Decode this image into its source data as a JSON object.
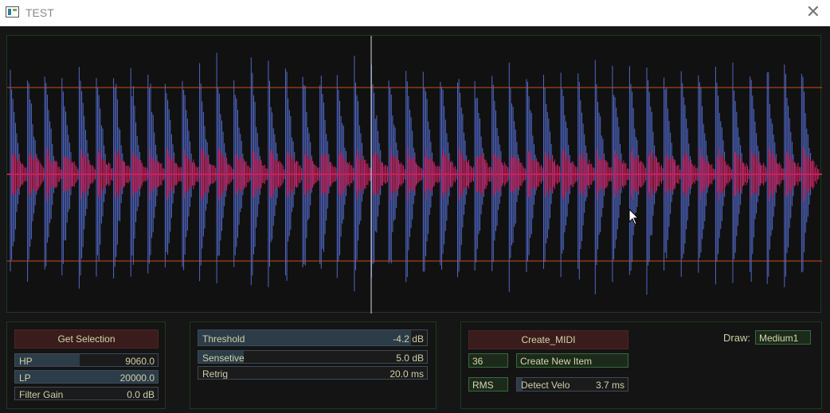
{
  "window": {
    "title": "TEST",
    "close_glyph": "✕",
    "app_icon": "app-window-icon"
  },
  "waveform": {
    "colors": {
      "wave": "#5068c6",
      "onset": "#c8205c",
      "threshold_line": "#c8501e",
      "playhead": "#d9d9d9",
      "center": "#c8205c"
    },
    "hit_count": 47
  },
  "selection_panel": {
    "get_selection_label": "Get Selection",
    "hp": {
      "label": "HP",
      "value": "9060.0",
      "level": 0.45
    },
    "lp": {
      "label": "LP",
      "value": "20000.0",
      "level": 1.0
    },
    "filter_gain": {
      "label": "Filter Gain",
      "value": "0.0 dB",
      "level": 0.0
    }
  },
  "detect_panel": {
    "threshold": {
      "label": "Threshold",
      "value": "-4.2 dB",
      "level": 0.93
    },
    "sensetive": {
      "label": "Sensetive",
      "value": "5.0 dB",
      "level": 0.2
    },
    "retrig": {
      "label": "Retrig",
      "value": "20.0 ms",
      "level": 0.0
    }
  },
  "midi_panel": {
    "create_midi_label": "Create_MIDI",
    "note_value": "36",
    "create_new_item_label": "Create New Item",
    "rms_label": "RMS",
    "detect_velo": {
      "label": "Detect Velo",
      "value": "3.7 ms",
      "level": 0.05
    },
    "draw_label": "Draw:",
    "draw_value": "Medium1"
  }
}
